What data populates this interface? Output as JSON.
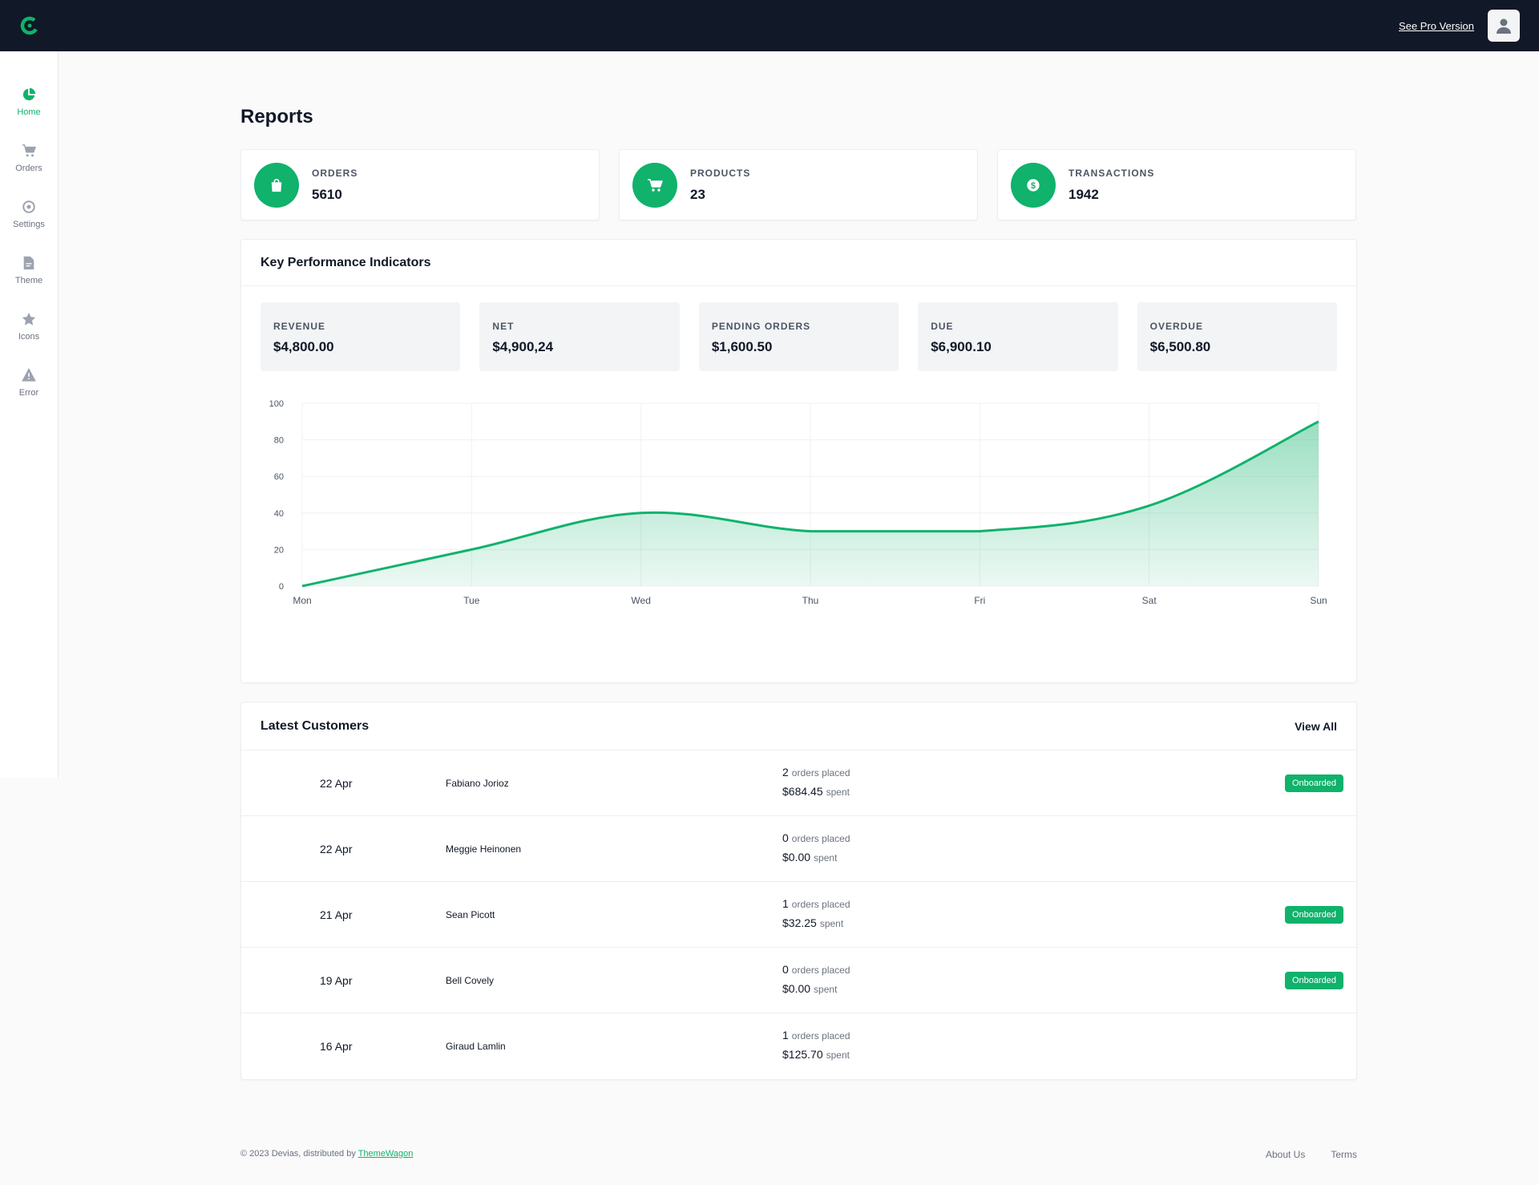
{
  "topbar": {
    "pro_link": "See Pro Version",
    "logo_color": "#10b26c"
  },
  "sidebar": {
    "items": [
      {
        "label": "Home",
        "icon": "pie-chart-icon",
        "active": true
      },
      {
        "label": "Orders",
        "icon": "cart-icon"
      },
      {
        "label": "Settings",
        "icon": "gear-icon"
      },
      {
        "label": "Theme",
        "icon": "document-icon"
      },
      {
        "label": "Icons",
        "icon": "star-icon"
      },
      {
        "label": "Error",
        "icon": "warning-icon"
      }
    ]
  },
  "page": {
    "title": "Reports"
  },
  "stats": [
    {
      "label": "ORDERS",
      "value": "5610",
      "icon": "shopping-bag-icon"
    },
    {
      "label": "PRODUCTS",
      "value": "23",
      "icon": "cart-icon"
    },
    {
      "label": "TRANSACTIONS",
      "value": "1942",
      "icon": "dollar-coin-icon"
    }
  ],
  "kpi_panel": {
    "title": "Key Performance Indicators",
    "kpis": [
      {
        "label": "REVENUE",
        "value": "$4,800.00"
      },
      {
        "label": "NET",
        "value": "$4,900,24"
      },
      {
        "label": "PENDING ORDERS",
        "value": "$1,600.50"
      },
      {
        "label": "DUE",
        "value": "$6,900.10"
      },
      {
        "label": "OVERDUE",
        "value": "$6,500.80"
      }
    ]
  },
  "chart_data": {
    "type": "area",
    "categories": [
      "Mon",
      "Tue",
      "Wed",
      "Thu",
      "Fri",
      "Sat",
      "Sun"
    ],
    "series": [
      {
        "values": [
          0,
          20,
          40,
          30,
          30,
          44,
          90
        ]
      }
    ],
    "ylim": [
      0,
      100
    ],
    "yticks": [
      "0",
      "20",
      "40",
      "60",
      "80",
      "100"
    ],
    "grid": true,
    "color": "#10b26c"
  },
  "customers": {
    "title": "Latest Customers",
    "view_all": "View All",
    "orders_suffix": "orders placed",
    "spent_suffix": "spent",
    "rows": [
      {
        "date": "22 Apr",
        "name": "Fabiano Jorioz",
        "orders": "2",
        "spent": "$684.45",
        "badge": "Onboarded"
      },
      {
        "date": "22 Apr",
        "name": "Meggie Heinonen",
        "orders": "0",
        "spent": "$0.00",
        "badge": ""
      },
      {
        "date": "21 Apr",
        "name": "Sean Picott",
        "orders": "1",
        "spent": "$32.25",
        "badge": "Onboarded"
      },
      {
        "date": "19 Apr",
        "name": "Bell Covely",
        "orders": "0",
        "spent": "$0.00",
        "badge": "Onboarded"
      },
      {
        "date": "16 Apr",
        "name": "Giraud Lamlin",
        "orders": "1",
        "spent": "$125.70",
        "badge": ""
      }
    ]
  },
  "footer": {
    "copyright": "© 2023 Devias, distributed by",
    "link": "ThemeWagon",
    "links": [
      "About Us",
      "Terms"
    ]
  }
}
